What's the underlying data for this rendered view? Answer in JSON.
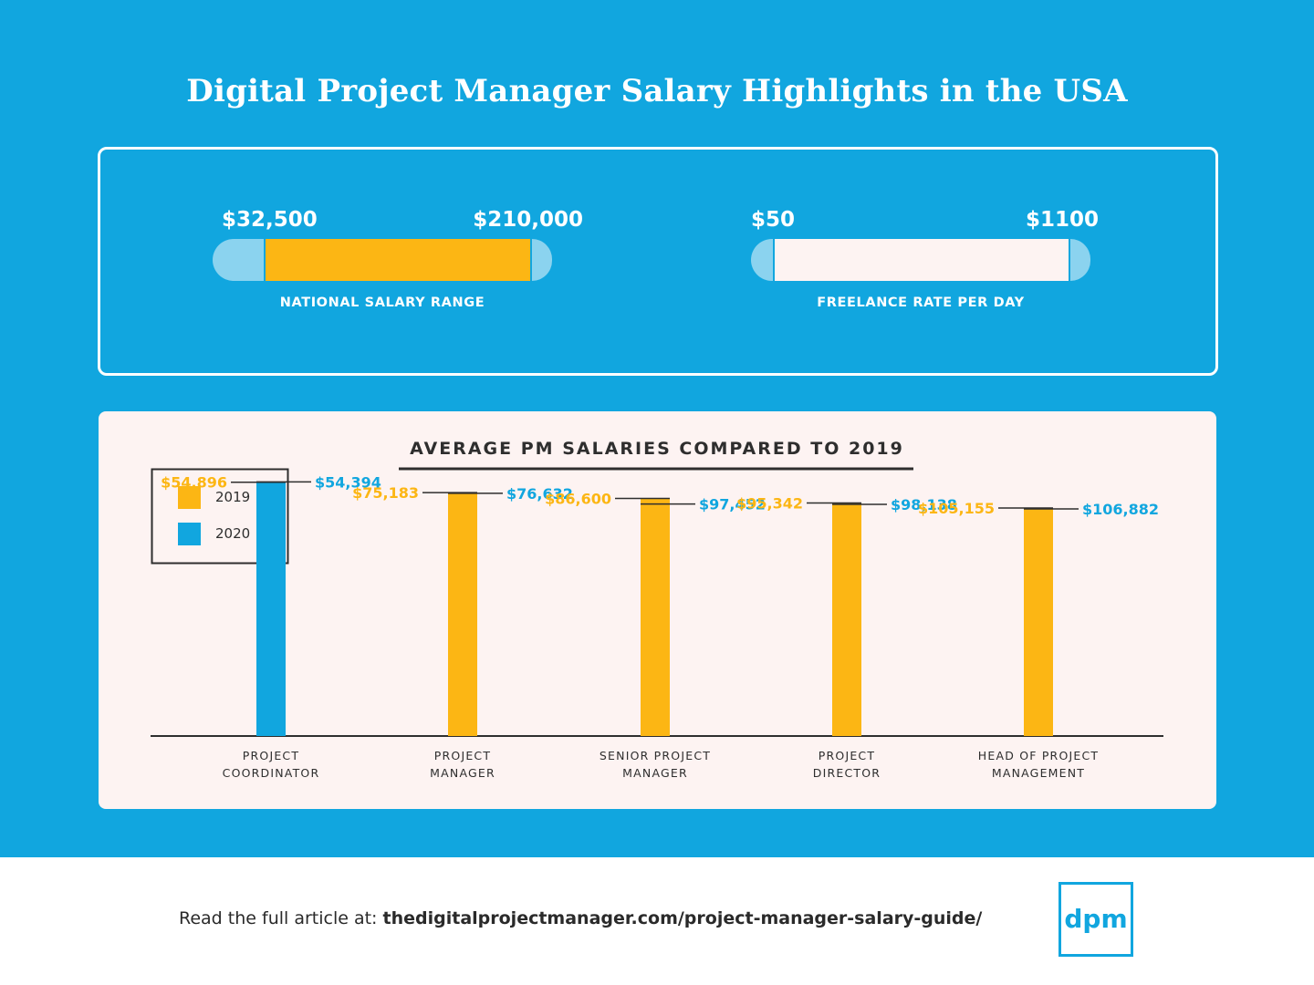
{
  "title": "Digital Project Manager Salary Highlights in the USA",
  "ranges": {
    "national": {
      "min": "$32,500",
      "max": "$210,000",
      "label": "NATIONAL SALARY RANGE",
      "color": "#fcb614"
    },
    "freelance": {
      "min": "$50",
      "max": "$1100",
      "label": "FREELANCE RATE PER DAY",
      "color": "#fdf3f2"
    }
  },
  "chart_data": {
    "type": "bar",
    "title": "AVERAGE PM SALARIES COMPARED TO 2019",
    "categories": [
      [
        "PROJECT",
        "COORDINATOR"
      ],
      [
        "PROJECT",
        "MANAGER"
      ],
      [
        "SENIOR PROJECT",
        "MANAGER"
      ],
      [
        "PROJECT",
        "DIRECTOR"
      ],
      [
        "HEAD OF PROJECT",
        "MANAGEMENT"
      ]
    ],
    "series": [
      {
        "name": "2019",
        "color": "#fcb614",
        "values": [
          54896,
          75183,
          86600,
          95342,
          105155
        ],
        "labels": [
          "$54,896",
          "$75,183",
          "$86,600",
          "$95,342",
          "$105,155"
        ]
      },
      {
        "name": "2020",
        "color": "#11a6df",
        "values": [
          54394,
          76632,
          97452,
          98138,
          106882
        ],
        "labels": [
          "$54,394",
          "$76,632",
          "$97,452",
          "$98,138",
          "$106,882"
        ]
      }
    ],
    "legend": "top-left",
    "ylim": [
      0,
      110000
    ]
  },
  "footer": {
    "lead": "Read the full article at: ",
    "url": "thedigitalprojectmanager.com/project-manager-salary-guide/",
    "logo": "dpm"
  }
}
